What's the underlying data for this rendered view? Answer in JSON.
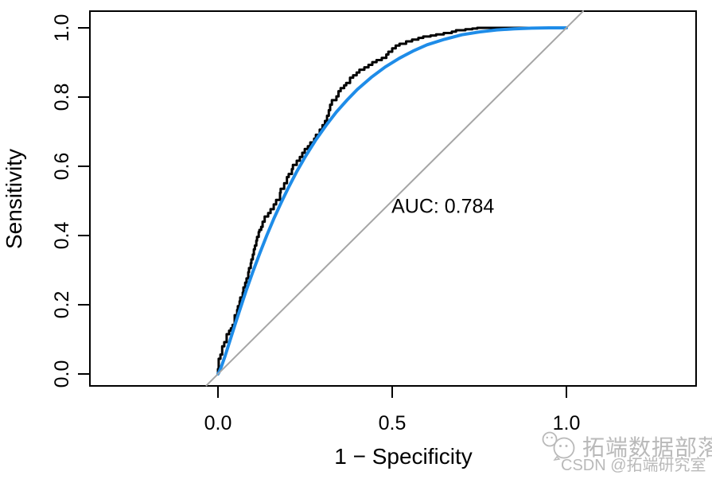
{
  "figure": {
    "background": "#ffffff"
  },
  "watermark": {
    "icon": "chat-bubbles-icon",
    "brand": "拓端数据部落",
    "csdn": "CSDN @拓端研究室",
    "color": "#b9b9b9"
  },
  "chart_data": {
    "type": "line",
    "title": "",
    "xlabel": "1 − Specificity",
    "ylabel": "Sensitivity",
    "xlim": [
      0,
      1
    ],
    "ylim": [
      0,
      1
    ],
    "grid": false,
    "legend": "none",
    "box": true,
    "x_ticks": [
      {
        "value": 0.0,
        "label": "0.0"
      },
      {
        "value": 0.5,
        "label": "0.5"
      },
      {
        "value": 1.0,
        "label": "1.0"
      }
    ],
    "y_ticks": [
      {
        "value": 0.0,
        "label": "0.0"
      },
      {
        "value": 0.2,
        "label": "0.2"
      },
      {
        "value": 0.4,
        "label": "0.4"
      },
      {
        "value": 0.6,
        "label": "0.6"
      },
      {
        "value": 0.8,
        "label": "0.8"
      },
      {
        "value": 1.0,
        "label": "1.0"
      }
    ],
    "annotations": [
      {
        "text": "AUC: 0.784",
        "x": 0.498,
        "y": 0.465,
        "anchor": "start",
        "color": "#000000"
      }
    ],
    "auc": 0.784,
    "series": [
      {
        "name": "empirical-roc-curve",
        "style": "step",
        "color": "#000000",
        "width": 3,
        "points": [
          [
            0.0,
            0.0
          ],
          [
            0.002,
            0.014
          ],
          [
            0.002,
            0.03
          ],
          [
            0.007,
            0.044
          ],
          [
            0.012,
            0.056
          ],
          [
            0.012,
            0.07
          ],
          [
            0.018,
            0.08
          ],
          [
            0.025,
            0.092
          ],
          [
            0.025,
            0.105
          ],
          [
            0.032,
            0.115
          ],
          [
            0.037,
            0.125
          ],
          [
            0.042,
            0.132
          ],
          [
            0.048,
            0.142
          ],
          [
            0.048,
            0.16
          ],
          [
            0.055,
            0.17
          ],
          [
            0.057,
            0.185
          ],
          [
            0.062,
            0.196
          ],
          [
            0.064,
            0.21
          ],
          [
            0.071,
            0.221
          ],
          [
            0.073,
            0.235
          ],
          [
            0.078,
            0.25
          ],
          [
            0.082,
            0.264
          ],
          [
            0.087,
            0.276
          ],
          [
            0.089,
            0.294
          ],
          [
            0.094,
            0.306
          ],
          [
            0.096,
            0.32
          ],
          [
            0.1,
            0.331
          ],
          [
            0.103,
            0.345
          ],
          [
            0.106,
            0.36
          ],
          [
            0.11,
            0.371
          ],
          [
            0.112,
            0.385
          ],
          [
            0.117,
            0.396
          ],
          [
            0.119,
            0.41
          ],
          [
            0.124,
            0.416
          ],
          [
            0.128,
            0.425
          ],
          [
            0.134,
            0.44
          ],
          [
            0.144,
            0.455
          ],
          [
            0.151,
            0.465
          ],
          [
            0.16,
            0.476
          ],
          [
            0.167,
            0.49
          ],
          [
            0.178,
            0.503
          ],
          [
            0.18,
            0.524
          ],
          [
            0.19,
            0.535
          ],
          [
            0.198,
            0.551
          ],
          [
            0.203,
            0.569
          ],
          [
            0.212,
            0.578
          ],
          [
            0.215,
            0.592
          ],
          [
            0.226,
            0.604
          ],
          [
            0.235,
            0.616
          ],
          [
            0.242,
            0.627
          ],
          [
            0.249,
            0.639
          ],
          [
            0.258,
            0.65
          ],
          [
            0.265,
            0.658
          ],
          [
            0.276,
            0.669
          ],
          [
            0.281,
            0.68
          ],
          [
            0.292,
            0.691
          ],
          [
            0.3,
            0.706
          ],
          [
            0.307,
            0.719
          ],
          [
            0.313,
            0.731
          ],
          [
            0.318,
            0.746
          ],
          [
            0.322,
            0.762
          ],
          [
            0.327,
            0.778
          ],
          [
            0.34,
            0.791
          ],
          [
            0.346,
            0.802
          ],
          [
            0.352,
            0.817
          ],
          [
            0.362,
            0.826
          ],
          [
            0.368,
            0.834
          ],
          [
            0.379,
            0.841
          ],
          [
            0.388,
            0.856
          ],
          [
            0.398,
            0.863
          ],
          [
            0.406,
            0.871
          ],
          [
            0.42,
            0.879
          ],
          [
            0.432,
            0.886
          ],
          [
            0.443,
            0.893
          ],
          [
            0.455,
            0.901
          ],
          [
            0.47,
            0.907
          ],
          [
            0.483,
            0.913
          ],
          [
            0.489,
            0.923
          ],
          [
            0.5,
            0.931
          ],
          [
            0.51,
            0.941
          ],
          [
            0.521,
            0.949
          ],
          [
            0.54,
            0.954
          ],
          [
            0.557,
            0.961
          ],
          [
            0.575,
            0.966
          ],
          [
            0.589,
            0.971
          ],
          [
            0.61,
            0.975
          ],
          [
            0.626,
            0.978
          ],
          [
            0.648,
            0.981
          ],
          [
            0.671,
            0.985
          ],
          [
            0.683,
            0.989
          ],
          [
            0.71,
            0.993
          ],
          [
            0.73,
            0.996
          ],
          [
            0.744,
            0.998
          ],
          [
            0.767,
            1.0
          ],
          [
            1.0,
            1.0
          ]
        ]
      },
      {
        "name": "smoothed-roc-curve",
        "style": "line",
        "color": "#1E8CE8",
        "width": 4,
        "points": [
          [
            0.0,
            0.0
          ],
          [
            0.003,
            0.005
          ],
          [
            0.006,
            0.012
          ],
          [
            0.01,
            0.022
          ],
          [
            0.02,
            0.051
          ],
          [
            0.03,
            0.082
          ],
          [
            0.04,
            0.114
          ],
          [
            0.05,
            0.146
          ],
          [
            0.06,
            0.177
          ],
          [
            0.08,
            0.238
          ],
          [
            0.1,
            0.295
          ],
          [
            0.12,
            0.349
          ],
          [
            0.14,
            0.4
          ],
          [
            0.16,
            0.448
          ],
          [
            0.18,
            0.492
          ],
          [
            0.2,
            0.534
          ],
          [
            0.225,
            0.583
          ],
          [
            0.25,
            0.627
          ],
          [
            0.28,
            0.675
          ],
          [
            0.31,
            0.718
          ],
          [
            0.34,
            0.757
          ],
          [
            0.37,
            0.791
          ],
          [
            0.4,
            0.822
          ],
          [
            0.44,
            0.857
          ],
          [
            0.48,
            0.887
          ],
          [
            0.52,
            0.912
          ],
          [
            0.56,
            0.933
          ],
          [
            0.6,
            0.951
          ],
          [
            0.65,
            0.967
          ],
          [
            0.7,
            0.98
          ],
          [
            0.75,
            0.988
          ],
          [
            0.8,
            0.994
          ],
          [
            0.85,
            0.997
          ],
          [
            0.9,
            0.999
          ],
          [
            0.95,
            1.0
          ],
          [
            1.0,
            1.0
          ]
        ]
      },
      {
        "name": "chance-diagonal-line",
        "style": "line",
        "color": "#A6A6A6",
        "width": 2,
        "points": [
          [
            -0.033,
            -0.033
          ],
          [
            1.048,
            1.048
          ]
        ]
      }
    ]
  }
}
